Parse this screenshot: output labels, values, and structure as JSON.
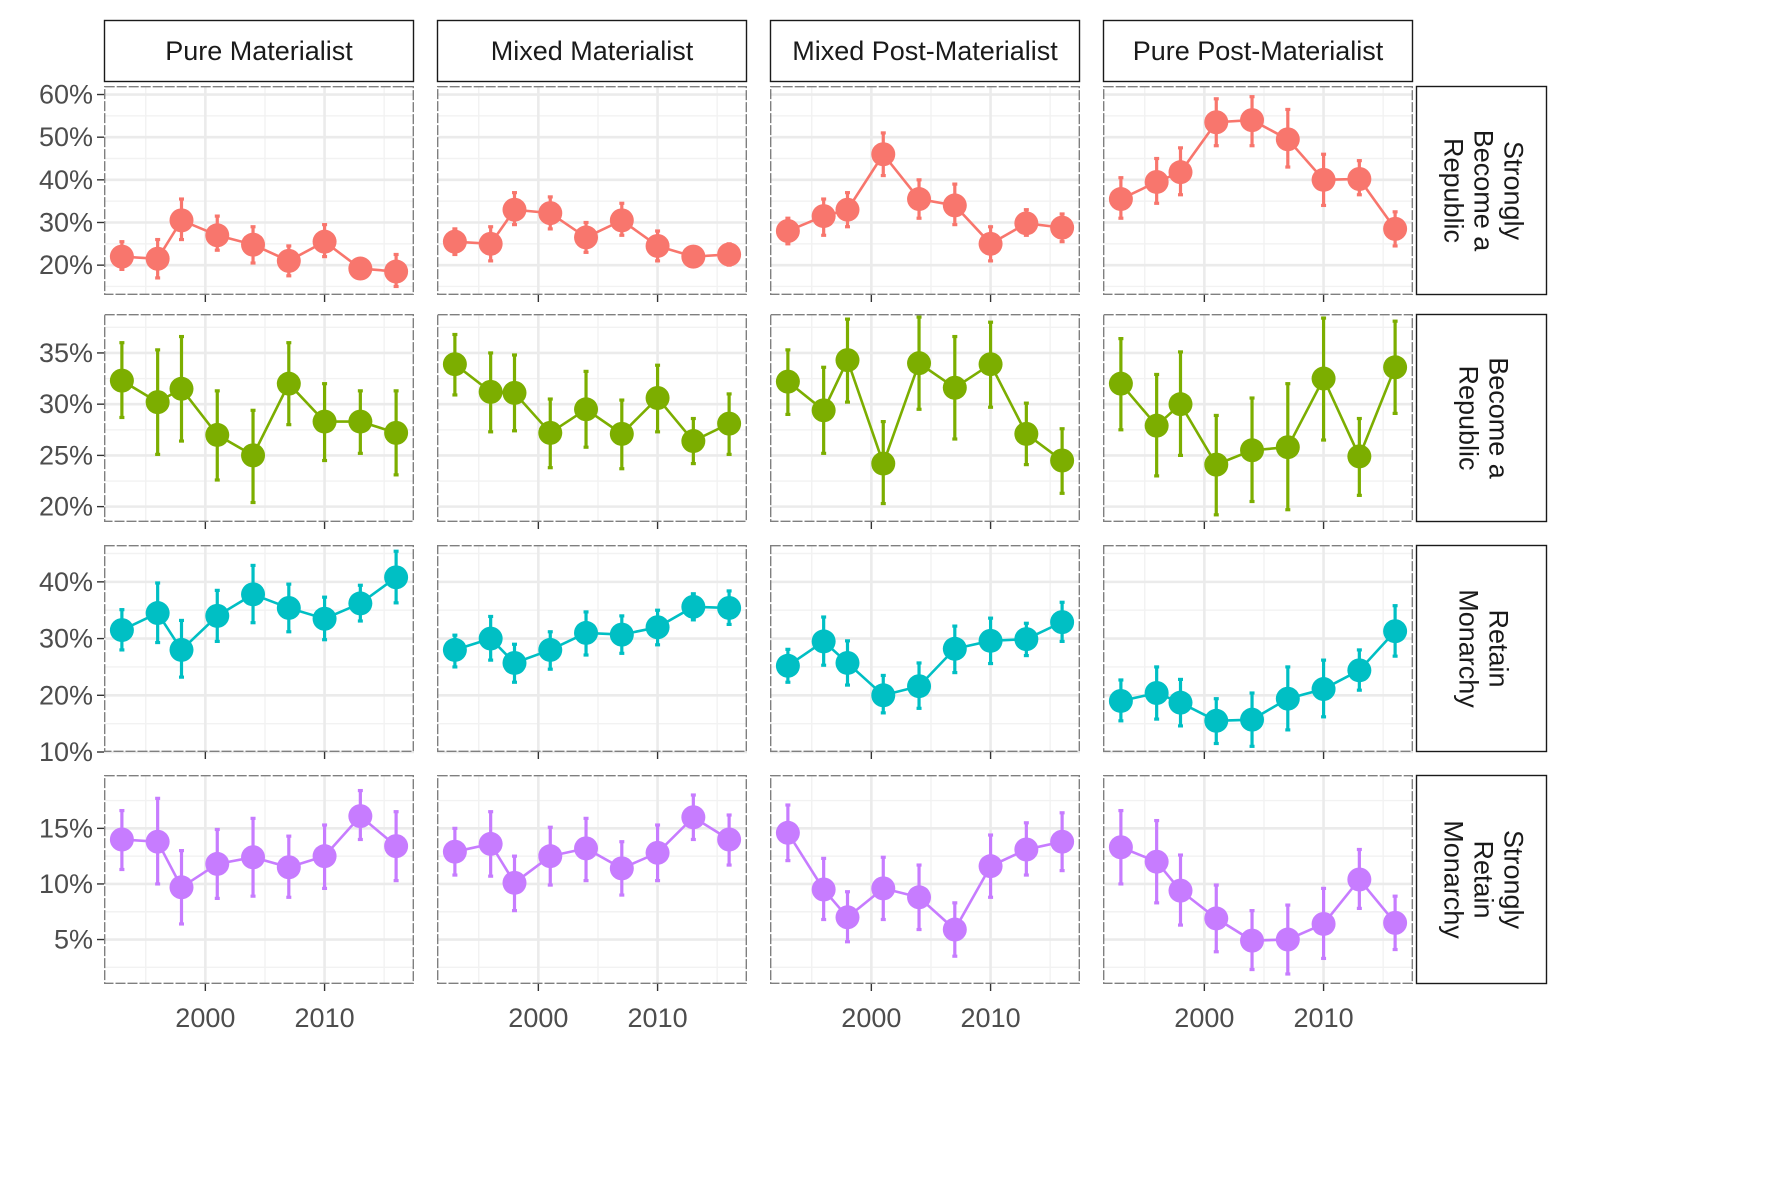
{
  "chart_data": {
    "type": "line",
    "layout": "facet-grid",
    "x": [
      1993,
      1996,
      1998,
      2001,
      2004,
      2007,
      2010,
      2013,
      2016
    ],
    "xlim": [
      1991.5,
      2017.5
    ],
    "xticks": [
      2000,
      2010
    ],
    "xtick_labels": [
      "2000",
      "2010"
    ],
    "columns": [
      "Pure Materialist",
      "Mixed Materialist",
      "Mixed Post-Materialist",
      "Pure Post-Materialist"
    ],
    "rows": [
      {
        "label_lines": [
          "Strongly",
          "Become a",
          "Republic"
        ],
        "color": "#F8766D",
        "ylim": [
          13,
          62
        ],
        "yticks": [
          20,
          30,
          40,
          50,
          60
        ],
        "ytick_labels": [
          "20%",
          "30%",
          "40%",
          "50%",
          "60%"
        ],
        "panels": [
          {
            "values": [
              22,
              21.5,
              30.5,
              27,
              24.8,
              21,
              25.5,
              19.2,
              18.5
            ],
            "lower": [
              19,
              17,
              26,
              23.5,
              20.5,
              17.5,
              22,
              17,
              15
            ],
            "upper": [
              25.5,
              26,
              35.5,
              31.5,
              29,
              24.5,
              29.5,
              21.5,
              22.5
            ]
          },
          {
            "values": [
              25.5,
              25,
              33,
              32.2,
              26.5,
              30.5,
              24.5,
              22,
              22.5
            ],
            "lower": [
              22.5,
              21,
              29.5,
              28.5,
              23,
              27,
              21,
              20,
              20
            ],
            "upper": [
              28.5,
              29,
              37,
              36,
              30,
              34.5,
              28,
              24,
              25
            ]
          },
          {
            "values": [
              28,
              31.5,
              33,
              46,
              35.5,
              34,
              25,
              29.8,
              28.8
            ],
            "lower": [
              25,
              27,
              29,
              41,
              31,
              29.5,
              21,
              27,
              25.5
            ],
            "upper": [
              31,
              35.5,
              37,
              51,
              40,
              39,
              29,
              33,
              32
            ]
          },
          {
            "values": [
              35.5,
              39.5,
              41.8,
              53.5,
              54,
              49.5,
              40,
              40.2,
              28.5
            ],
            "lower": [
              31,
              34.5,
              36.5,
              48,
              48,
              43,
              34,
              36.5,
              24.5
            ],
            "upper": [
              40.5,
              45,
              47.5,
              59,
              59.5,
              56.5,
              46,
              44.5,
              32.5
            ]
          }
        ]
      },
      {
        "label_lines": [
          "Become a",
          "Republic"
        ],
        "color": "#7CAE00",
        "ylim": [
          18.5,
          38.8
        ],
        "yticks": [
          20,
          25,
          30,
          35
        ],
        "ytick_labels": [
          "20%",
          "25%",
          "30%",
          "35%"
        ],
        "panels": [
          {
            "values": [
              32.3,
              30.2,
              31.5,
              27,
              25,
              32,
              28.3,
              28.3,
              27.2
            ],
            "lower": [
              28.7,
              25.1,
              26.4,
              22.6,
              20.4,
              28,
              24.5,
              25.2,
              23.1
            ],
            "upper": [
              36,
              35.3,
              36.6,
              31.3,
              29.4,
              36,
              32,
              31.3,
              31.3
            ]
          },
          {
            "values": [
              33.9,
              31.2,
              31.1,
              27.2,
              29.5,
              27.1,
              30.6,
              26.4,
              28.1
            ],
            "lower": [
              30.9,
              27.3,
              27.4,
              23.8,
              25.8,
              23.7,
              27.3,
              24.2,
              25.1
            ],
            "upper": [
              36.8,
              35,
              34.8,
              30.5,
              33.2,
              30.4,
              33.8,
              28.6,
              31
            ]
          },
          {
            "values": [
              32.2,
              29.4,
              34.3,
              24.2,
              34,
              31.6,
              33.9,
              27.1,
              24.5
            ],
            "lower": [
              29,
              25.2,
              30.2,
              20.3,
              29.5,
              26.6,
              29.7,
              24.1,
              21.3
            ],
            "upper": [
              35.3,
              33.6,
              38.3,
              28.3,
              38.5,
              36.6,
              38,
              30.1,
              27.6
            ]
          },
          {
            "values": [
              32,
              27.9,
              30,
              24.1,
              25.5,
              25.8,
              32.5,
              24.9,
              33.6
            ],
            "lower": [
              27.5,
              23,
              25,
              19.2,
              20.5,
              19.7,
              26.5,
              21.1,
              29.1
            ],
            "upper": [
              36.4,
              32.9,
              35.1,
              28.9,
              30.6,
              32,
              38.4,
              28.6,
              38.1
            ]
          }
        ]
      },
      {
        "label_lines": [
          "Retain",
          "Monarchy"
        ],
        "color": "#00BFC4",
        "ylim": [
          10,
          46.5
        ],
        "yticks": [
          10,
          20,
          30,
          40
        ],
        "ytick_labels": [
          "10%",
          "20%",
          "30%",
          "40%"
        ],
        "panels": [
          {
            "values": [
              31.5,
              34.5,
              28,
              34,
              37.8,
              35.4,
              33.5,
              36.2,
              40.8
            ],
            "lower": [
              28,
              29.3,
              23.2,
              29.5,
              32.8,
              31.2,
              29.8,
              33.1,
              36.3
            ],
            "upper": [
              35.1,
              39.8,
              33.2,
              38.5,
              42.9,
              39.6,
              37.3,
              39.4,
              45.4
            ]
          },
          {
            "values": [
              28,
              30,
              25.7,
              28,
              31,
              30.7,
              32,
              35.6,
              35.4
            ],
            "lower": [
              25,
              26.2,
              22.3,
              24.6,
              27.1,
              27.4,
              28.9,
              33.3,
              32.5
            ],
            "upper": [
              30.6,
              33.9,
              29,
              31.2,
              34.7,
              34,
              35,
              37.9,
              38.4
            ]
          },
          {
            "values": [
              25.2,
              29.5,
              25.7,
              20,
              21.6,
              28.2,
              29.6,
              29.9,
              32.9
            ],
            "lower": [
              22.3,
              25.3,
              21.8,
              16.9,
              17.7,
              24,
              25.6,
              27,
              29.5
            ],
            "upper": [
              28.1,
              33.8,
              29.6,
              23.5,
              25.7,
              32.2,
              33.6,
              32.7,
              36.4
            ]
          },
          {
            "values": [
              19,
              20.4,
              18.7,
              15.5,
              15.7,
              19.4,
              21.1,
              24.4,
              31.3
            ],
            "lower": [
              15.5,
              15.8,
              14.6,
              11.5,
              11,
              13.9,
              16.2,
              20.9,
              26.9
            ],
            "upper": [
              22.7,
              25,
              22.8,
              19.4,
              20.4,
              25,
              26.2,
              28,
              35.8
            ]
          }
        ]
      },
      {
        "label_lines": [
          "Strongly",
          "Retain",
          "Monarchy"
        ],
        "color": "#C77CFF",
        "ylim": [
          1,
          19.8
        ],
        "yticks": [
          5,
          10,
          15
        ],
        "ytick_labels": [
          "5%",
          "10%",
          "15%"
        ],
        "panels": [
          {
            "values": [
              14,
              13.8,
              9.7,
              11.8,
              12.4,
              11.5,
              12.5,
              16.1,
              13.4
            ],
            "lower": [
              11.3,
              10,
              6.4,
              8.7,
              8.9,
              8.8,
              9.6,
              14,
              10.3
            ],
            "upper": [
              16.6,
              17.7,
              13,
              14.9,
              15.9,
              14.3,
              15.3,
              18.4,
              16.5
            ]
          },
          {
            "values": [
              12.9,
              13.6,
              10.1,
              12.5,
              13.2,
              11.4,
              12.8,
              16,
              14
            ],
            "lower": [
              10.8,
              10.7,
              7.6,
              9.9,
              10.3,
              9,
              10.3,
              14,
              11.7
            ],
            "upper": [
              15,
              16.5,
              12.5,
              15.1,
              15.9,
              13.8,
              15.3,
              18,
              16.2
            ]
          },
          {
            "values": [
              14.6,
              9.5,
              7,
              9.6,
              8.8,
              5.9,
              11.6,
              13.1,
              13.8
            ],
            "lower": [
              12.1,
              6.8,
              4.8,
              6.8,
              5.9,
              3.5,
              8.8,
              10.8,
              11.2
            ],
            "upper": [
              17.1,
              12.3,
              9.3,
              12.4,
              11.7,
              8.3,
              14.4,
              15.5,
              16.4
            ]
          },
          {
            "values": [
              13.3,
              12,
              9.4,
              6.9,
              4.9,
              5,
              6.4,
              10.4,
              6.5
            ],
            "lower": [
              10,
              8.3,
              6.3,
              3.9,
              2.3,
              1.9,
              3.3,
              7.8,
              4.1
            ],
            "upper": [
              16.6,
              15.7,
              12.6,
              9.9,
              7.6,
              8.1,
              9.6,
              13.1,
              8.9
            ]
          }
        ]
      }
    ]
  }
}
